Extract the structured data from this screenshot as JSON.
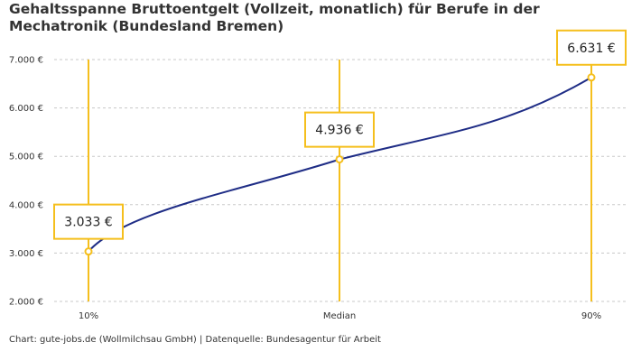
{
  "title": "Gehaltsspanne Bruttoentgelt (Vollzeit, monatlich) für Berufe in der Mechatronik (Bundesland Bremen)",
  "footer": "Chart: gute-jobs.de (Wollmilchsau GmbH) | Datenquelle: Bundesagentur für Arbeit",
  "colors": {
    "line": "#1f2d86",
    "accent": "#f5bf1d",
    "grid": "#c8c8c8",
    "text": "#333333"
  },
  "chart_data": {
    "type": "line",
    "title": "Gehaltsspanne Bruttoentgelt (Vollzeit, monatlich) für Berufe in der Mechatronik (Bundesland Bremen)",
    "categories": [
      "10%",
      "Median",
      "90%"
    ],
    "values": [
      3033,
      4936,
      6631
    ],
    "value_labels": [
      "3.033 €",
      "4.936 €",
      "6.631 €"
    ],
    "ylim": [
      2000,
      7000
    ],
    "yticks": [
      2000,
      3000,
      4000,
      5000,
      6000,
      7000
    ],
    "ytick_labels": [
      "2.000 €",
      "3.000 €",
      "4.000 €",
      "5.000 €",
      "6.000 €",
      "7.000 €"
    ],
    "grid": true
  }
}
